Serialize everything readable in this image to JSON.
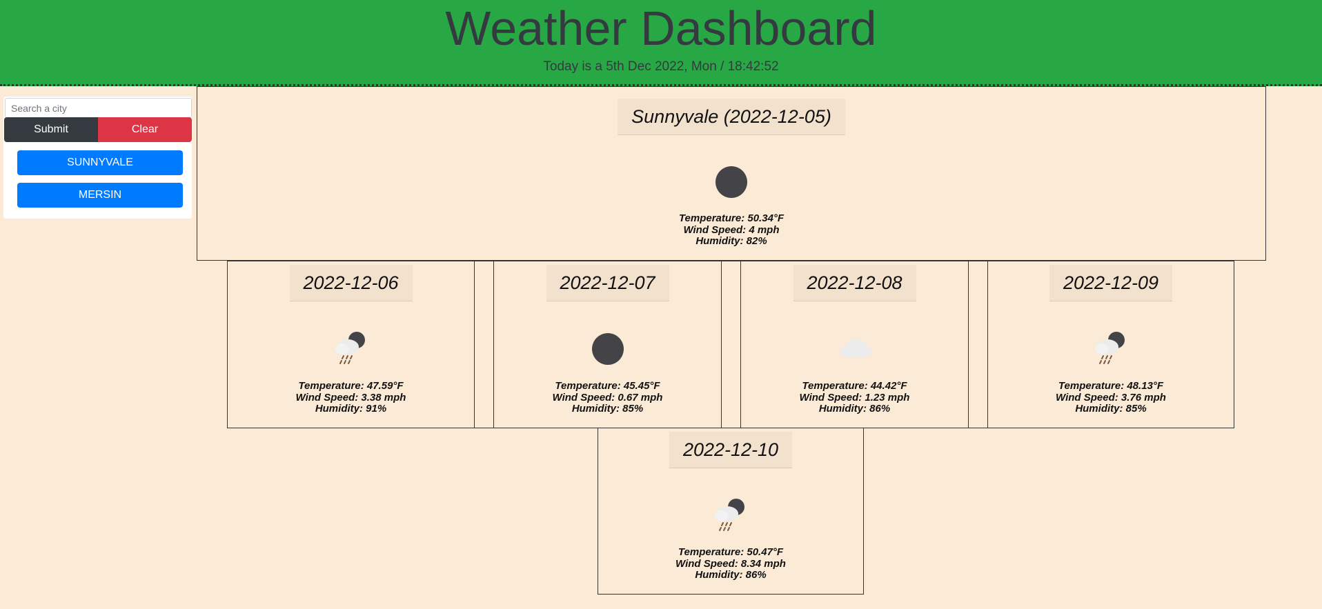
{
  "header": {
    "title": "Weather Dashboard",
    "date_text": "Today is a 5th Dec 2022, Mon / 18:42:52"
  },
  "search": {
    "placeholder": "Search a city",
    "submit_label": "Submit",
    "clear_label": "Clear"
  },
  "history": [
    {
      "label": "SUNNYVALE"
    },
    {
      "label": "MERSIN"
    }
  ],
  "current": {
    "title": "Sunnyvale (2022-12-05)",
    "icon": "dark-circle-icon",
    "temperature": "Temperature: 50.34°F",
    "wind": "Wind Speed: 4 mph",
    "humidity": "Humidity: 82%"
  },
  "forecast": [
    {
      "date": "2022-12-06",
      "icon": "rain-night-icon",
      "temperature": "Temperature: 47.59°F",
      "wind": "Wind Speed: 3.38 mph",
      "humidity": "Humidity: 91%"
    },
    {
      "date": "2022-12-07",
      "icon": "dark-circle-icon",
      "temperature": "Temperature: 45.45°F",
      "wind": "Wind Speed: 0.67 mph",
      "humidity": "Humidity: 85%"
    },
    {
      "date": "2022-12-08",
      "icon": "cloud-icon",
      "temperature": "Temperature: 44.42°F",
      "wind": "Wind Speed: 1.23 mph",
      "humidity": "Humidity: 86%"
    },
    {
      "date": "2022-12-09",
      "icon": "rain-night-icon",
      "temperature": "Temperature: 48.13°F",
      "wind": "Wind Speed: 3.76 mph",
      "humidity": "Humidity: 85%"
    },
    {
      "date": "2022-12-10",
      "icon": "rain-night-icon",
      "temperature": "Temperature: 50.47°F",
      "wind": "Wind Speed: 8.34 mph",
      "humidity": "Humidity: 86%"
    }
  ],
  "colors": {
    "header_bg": "#28a745",
    "page_bg": "#fbebd6",
    "submit": "#343a40",
    "clear": "#dc3545",
    "city": "#007bff"
  }
}
